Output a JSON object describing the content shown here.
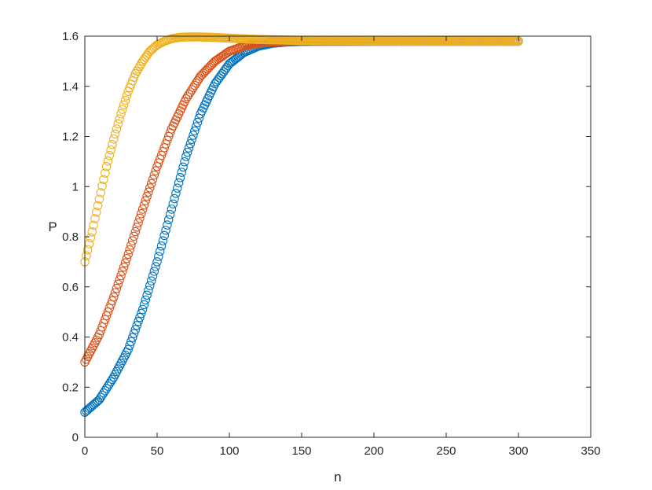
{
  "chart_data": {
    "type": "scatter",
    "title": "",
    "xlabel": "n",
    "ylabel": "P",
    "xlim": [
      0,
      350
    ],
    "ylim": [
      0,
      1.6
    ],
    "xticks": [
      0,
      50,
      100,
      150,
      200,
      250,
      300,
      350
    ],
    "yticks": [
      0,
      0.2,
      0.4,
      0.6,
      0.8,
      1,
      1.2,
      1.4,
      1.6
    ],
    "grid": false,
    "legend": "none",
    "marker": "open-circle",
    "series": [
      {
        "color": "#0072BD",
        "start": 0.1,
        "limit": 1.58,
        "n_max": 300,
        "x": [
          0,
          10,
          20,
          30,
          40,
          50,
          60,
          70,
          80,
          90,
          100,
          110,
          120,
          130,
          140,
          150,
          160,
          180,
          200,
          250,
          300
        ],
        "y": [
          0.1,
          0.15,
          0.24,
          0.35,
          0.51,
          0.7,
          0.91,
          1.12,
          1.29,
          1.41,
          1.49,
          1.535,
          1.56,
          1.572,
          1.577,
          1.579,
          1.58,
          1.58,
          1.58,
          1.58,
          1.58
        ]
      },
      {
        "color": "#D95319",
        "start": 0.3,
        "limit": 1.58,
        "n_max": 300,
        "x": [
          0,
          10,
          20,
          30,
          40,
          50,
          60,
          70,
          80,
          90,
          100,
          110,
          120,
          130,
          140,
          150,
          160,
          180,
          200,
          250,
          300
        ],
        "y": [
          0.3,
          0.41,
          0.56,
          0.73,
          0.91,
          1.08,
          1.23,
          1.35,
          1.44,
          1.5,
          1.54,
          1.56,
          1.572,
          1.577,
          1.579,
          1.58,
          1.58,
          1.58,
          1.58,
          1.58,
          1.58
        ]
      },
      {
        "color": "#EDB120",
        "start": 0.7,
        "limit": 1.58,
        "n_max": 300,
        "x": [
          0,
          5,
          10,
          15,
          20,
          25,
          30,
          35,
          40,
          45,
          50,
          55,
          60,
          65,
          70,
          80,
          90,
          100,
          120,
          150,
          200,
          250,
          300
        ],
        "y": [
          0.7,
          0.82,
          0.95,
          1.08,
          1.19,
          1.29,
          1.38,
          1.45,
          1.5,
          1.54,
          1.565,
          1.58,
          1.59,
          1.595,
          1.597,
          1.597,
          1.595,
          1.592,
          1.587,
          1.583,
          1.581,
          1.58,
          1.58
        ]
      }
    ]
  }
}
